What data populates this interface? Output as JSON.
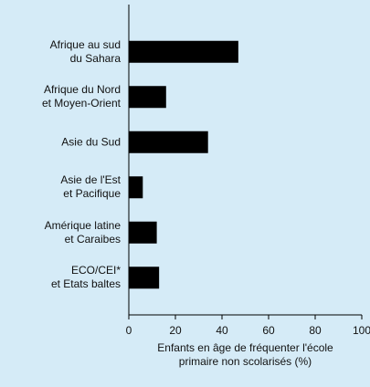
{
  "chart_data": {
    "type": "bar",
    "orientation": "horizontal",
    "categories": [
      "Afrique au sud\ndu Sahara",
      "Afrique du Nord\net Moyen-Orient",
      "Asie du Sud",
      "Asie de l'Est\net Pacifique",
      "Amérique latine\net Caraibes",
      "ECO/CEI*\net Etats baltes"
    ],
    "values": [
      47,
      16,
      34,
      6,
      12,
      13
    ],
    "color": "#000000",
    "xlabel": "Enfants en âge de fréquenter l'école\nprimaire non scolarisés (%)",
    "xlim": [
      0,
      100
    ],
    "xticks": [
      0,
      20,
      40,
      60,
      80,
      100
    ],
    "grid": false
  }
}
